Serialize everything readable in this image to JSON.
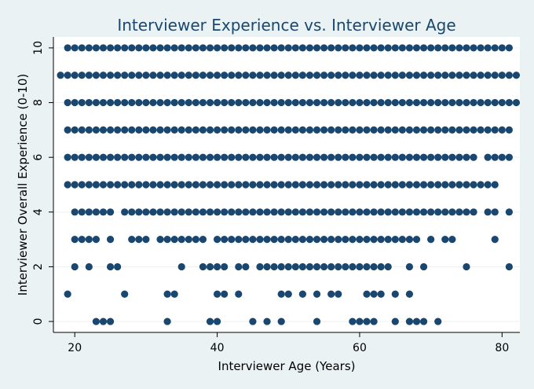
{
  "chart_data": {
    "type": "scatter",
    "title": "Interviewer Experience vs. Interviewer Age",
    "xlabel": "Interviewer Age (Years)",
    "ylabel": "Interviewer Overall Experience (0-10)",
    "xlim": [
      17,
      82.5
    ],
    "ylim": [
      -0.4,
      10.4
    ],
    "xticks": [
      20,
      40,
      60,
      80
    ],
    "yticks": [
      0,
      2,
      4,
      6,
      8,
      10
    ],
    "grid": true,
    "legend": "none",
    "colors": {
      "marker": "#1a476f",
      "plot_background": "#ffffff",
      "figure_background": "#eaf2f3",
      "grid": "#eaf2f3",
      "title": "#1a476f"
    },
    "levels": [
      {
        "y": 10,
        "ranges": [
          [
            19,
            81
          ]
        ],
        "points": []
      },
      {
        "y": 9,
        "ranges": [
          [
            18,
            82
          ]
        ],
        "points": []
      },
      {
        "y": 8,
        "ranges": [
          [
            19,
            82
          ]
        ],
        "points": []
      },
      {
        "y": 7,
        "ranges": [
          [
            19,
            81
          ]
        ],
        "points": []
      },
      {
        "y": 6,
        "ranges": [
          [
            19,
            76
          ],
          [
            78,
            81
          ]
        ],
        "points": []
      },
      {
        "y": 5,
        "ranges": [
          [
            19,
            79
          ]
        ],
        "points": []
      },
      {
        "y": 4,
        "ranges": [
          [
            20,
            25
          ],
          [
            27,
            76
          ],
          [
            78,
            79
          ]
        ],
        "points": [
          81
        ]
      },
      {
        "y": 3,
        "ranges": [
          [
            20,
            23
          ],
          [
            28,
            30
          ],
          [
            32,
            38
          ],
          [
            40,
            68
          ],
          [
            72,
            73
          ]
        ],
        "points": [
          25,
          70,
          79
        ]
      },
      {
        "y": 2,
        "ranges": [
          [
            38,
            41
          ],
          [
            43,
            44
          ],
          [
            46,
            64
          ]
        ],
        "points": [
          20,
          22,
          25,
          26,
          35,
          67,
          69,
          75,
          81
        ]
      },
      {
        "y": 1,
        "ranges": [],
        "points": [
          19,
          27,
          33,
          34,
          40,
          41,
          43,
          49,
          50,
          52,
          54,
          56,
          57,
          61,
          62,
          63,
          65,
          67
        ]
      },
      {
        "y": 0,
        "ranges": [],
        "points": [
          23,
          24,
          25,
          33,
          39,
          40,
          45,
          47,
          49,
          54,
          59,
          60,
          61,
          62,
          65,
          67,
          68,
          69,
          71
        ]
      }
    ]
  }
}
